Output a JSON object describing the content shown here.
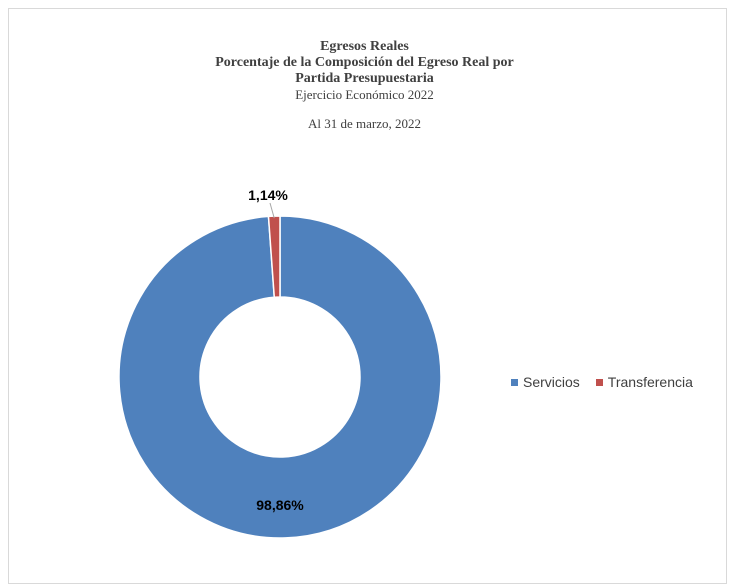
{
  "chart_data": {
    "type": "pie",
    "variant": "doughnut",
    "title": "Egresos Reales",
    "subtitle_lines": [
      "Porcentaje de la Composición del Egreso Real por",
      "Partida Presupuestaria"
    ],
    "subtitle2": "Ejercicio  Económico  2022",
    "date_label": "Al 31 de marzo,  2022",
    "categories": [
      "Servicios",
      "Transferencia"
    ],
    "values": [
      98.86,
      1.14
    ],
    "data_labels": [
      "98,86%",
      "1,14%"
    ],
    "colors": [
      "#4f81bd",
      "#c0504d"
    ],
    "legend_position": "right"
  }
}
